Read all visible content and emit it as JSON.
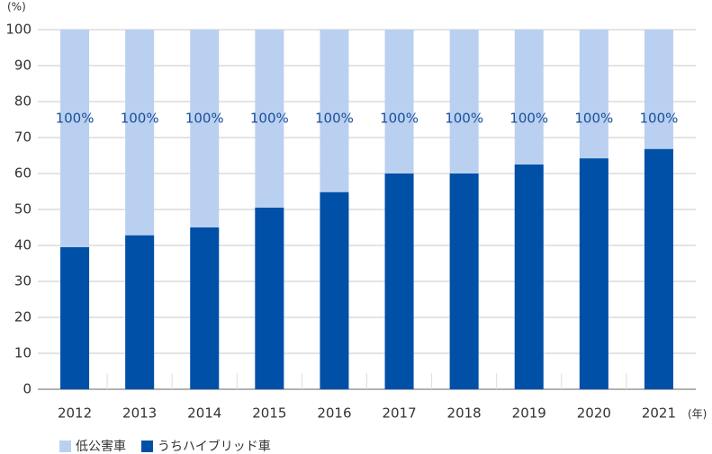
{
  "chart_data": {
    "type": "bar",
    "ylabel": "(%)",
    "xlabel": "(年)",
    "categories": [
      "2012",
      "2013",
      "2014",
      "2015",
      "2016",
      "2017",
      "2018",
      "2019",
      "2020",
      "2021"
    ],
    "series": [
      {
        "name": "低公害車",
        "color": "#bad0f0",
        "values": [
          100,
          100,
          100,
          100,
          100,
          100,
          100,
          100,
          100,
          100
        ],
        "value_labels": [
          "100%",
          "100%",
          "100%",
          "100%",
          "100%",
          "100%",
          "100%",
          "100%",
          "100%",
          "100%"
        ]
      },
      {
        "name": "うちハイブリッド車",
        "color": "#0050a8",
        "values": [
          39.5,
          42.8,
          45,
          50.5,
          54.8,
          60,
          60,
          62.5,
          64.2,
          66.8
        ]
      }
    ],
    "ylim": [
      0,
      100
    ],
    "yticks": [
      0,
      10,
      20,
      30,
      40,
      50,
      60,
      70,
      80,
      90,
      100
    ],
    "grid": true,
    "legend": "bottom"
  }
}
